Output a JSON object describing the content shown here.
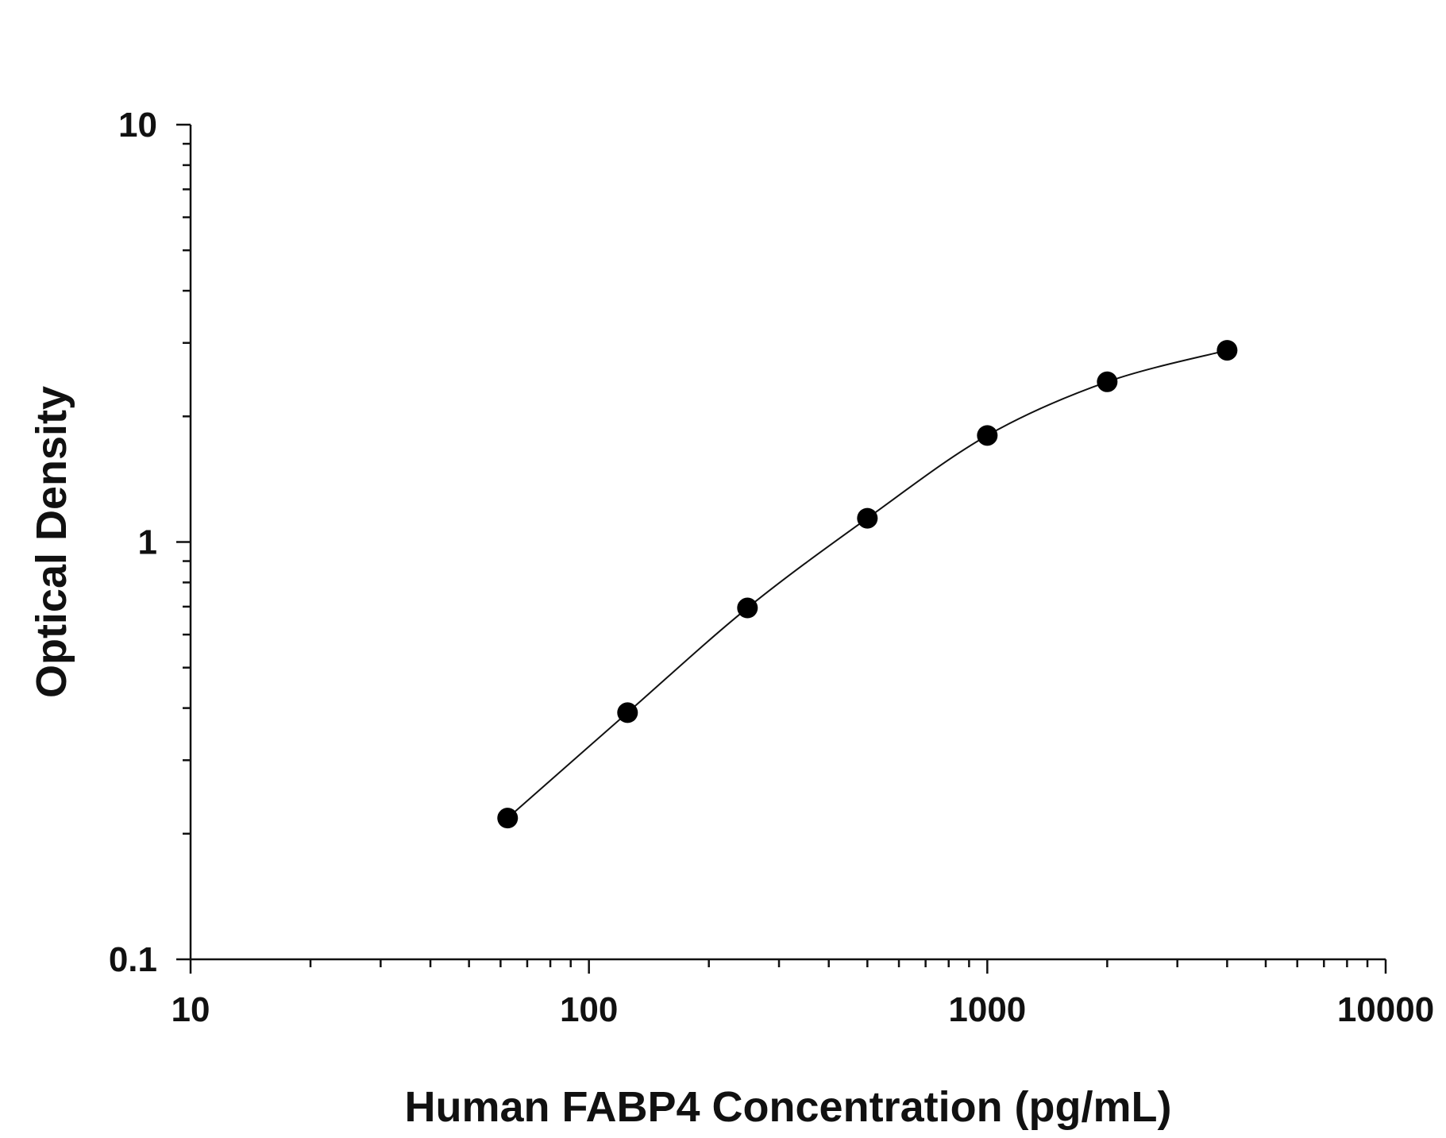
{
  "chart_data": {
    "type": "scatter",
    "xlabel": "Human FABP4 Concentration (pg/mL)",
    "ylabel": "Optical Density",
    "x_scale": "log",
    "y_scale": "log",
    "xlim": [
      10,
      10000
    ],
    "ylim": [
      0.1,
      10
    ],
    "x_ticks": [
      10,
      100,
      1000,
      10000
    ],
    "x_tick_labels": [
      "10",
      "100",
      "1000",
      "10000"
    ],
    "y_ticks": [
      0.1,
      1,
      10
    ],
    "y_tick_labels": [
      "0.1",
      "1",
      "10"
    ],
    "grid": false,
    "legend": "none",
    "series": [
      {
        "x": [
          62.5,
          125,
          250,
          500,
          1000,
          2000,
          4000
        ],
        "y": [
          0.218,
          0.39,
          0.695,
          1.14,
          1.8,
          2.42,
          2.88
        ],
        "marker": "filled-circle",
        "fit_curve": true,
        "color": "#000000"
      }
    ]
  }
}
